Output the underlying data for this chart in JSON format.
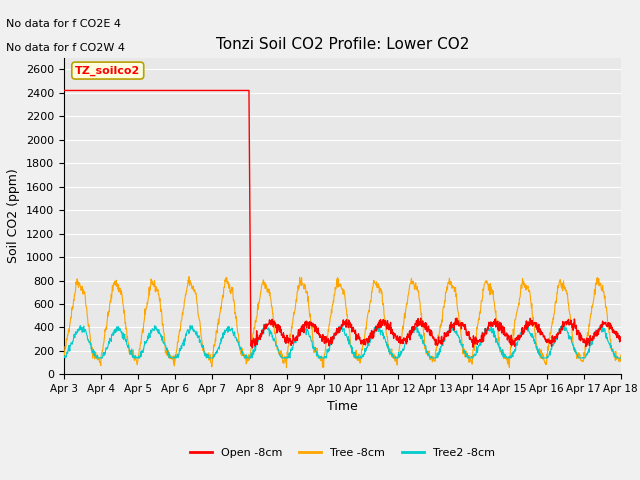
{
  "title": "Tonzi Soil CO2 Profile: Lower CO2",
  "xlabel": "Time",
  "ylabel": "Soil CO2 (ppm)",
  "ylim": [
    0,
    2700
  ],
  "yticks": [
    0,
    200,
    400,
    600,
    800,
    1000,
    1200,
    1400,
    1600,
    1800,
    2000,
    2200,
    2400,
    2600
  ],
  "xlim_days": [
    0,
    15
  ],
  "xtick_labels": [
    "Apr 3",
    "Apr 4",
    "Apr 5",
    "Apr 6",
    "Apr 7",
    "Apr 8",
    "Apr 9",
    "Apr 10",
    "Apr 11",
    "Apr 12",
    "Apr 13",
    "Apr 14",
    "Apr 15",
    "Apr 16",
    "Apr 17",
    "Apr 18"
  ],
  "xtick_positions": [
    0,
    1,
    2,
    3,
    4,
    5,
    6,
    7,
    8,
    9,
    10,
    11,
    12,
    13,
    14,
    15
  ],
  "annotation1": "No data for f CO2E 4",
  "annotation2": "No data for f CO2W 4",
  "box_label": "TZ_soilco2",
  "legend_labels": [
    "Open -8cm",
    "Tree -8cm",
    "Tree2 -8cm"
  ],
  "legend_colors": [
    "#ff0000",
    "#ffa500",
    "#00cccc"
  ],
  "line_colors": [
    "#ff0000",
    "#ffa500",
    "#00cccc"
  ],
  "bg_color": "#e8e8e8",
  "fig_bg": "#f0f0f0",
  "title_fontsize": 11,
  "axis_label_fontsize": 9,
  "tick_fontsize": 8,
  "annotation_fontsize": 8,
  "legend_fontsize": 8
}
